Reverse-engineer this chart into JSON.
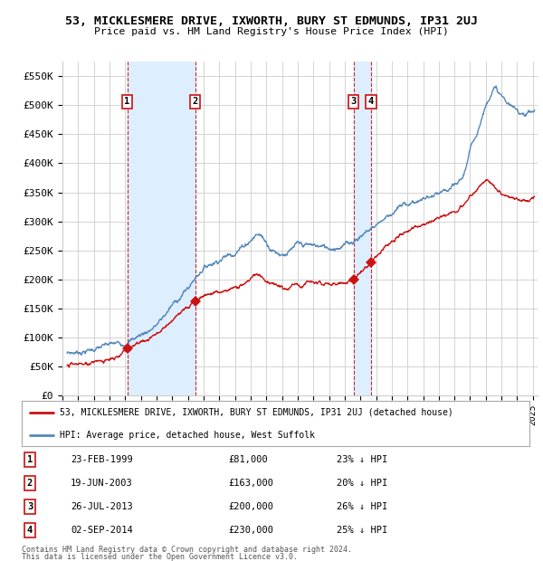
{
  "title": "53, MICKLESMERE DRIVE, IXWORTH, BURY ST EDMUNDS, IP31 2UJ",
  "subtitle": "Price paid vs. HM Land Registry's House Price Index (HPI)",
  "xlim_start": 1995.3,
  "xlim_end": 2025.3,
  "ylim": [
    0,
    575000
  ],
  "yticks": [
    0,
    50000,
    100000,
    150000,
    200000,
    250000,
    300000,
    350000,
    400000,
    450000,
    500000,
    550000
  ],
  "ytick_labels": [
    "£0",
    "£50K",
    "£100K",
    "£150K",
    "£200K",
    "£250K",
    "£300K",
    "£350K",
    "£400K",
    "£450K",
    "£500K",
    "£550K"
  ],
  "transactions": [
    {
      "num": 1,
      "date": "23-FEB-1999",
      "price": 81000,
      "year": 1999.13,
      "pct": "23%",
      "dir": "↓"
    },
    {
      "num": 2,
      "date": "19-JUN-2003",
      "price": 163000,
      "year": 2003.46,
      "pct": "20%",
      "dir": "↓"
    },
    {
      "num": 3,
      "date": "26-JUL-2013",
      "price": 200000,
      "year": 2013.57,
      "pct": "26%",
      "dir": "↓"
    },
    {
      "num": 4,
      "date": "02-SEP-2014",
      "price": 230000,
      "year": 2014.67,
      "pct": "25%",
      "dir": "↓"
    }
  ],
  "legend_line1": "53, MICKLESMERE DRIVE, IXWORTH, BURY ST EDMUNDS, IP31 2UJ (detached house)",
  "legend_line2": "HPI: Average price, detached house, West Suffolk",
  "footer1": "Contains HM Land Registry data © Crown copyright and database right 2024.",
  "footer2": "This data is licensed under the Open Government Licence v3.0.",
  "hpi_color": "#5588bb",
  "price_color": "#cc1111",
  "band_color": "#ddeeff",
  "grid_color": "#cccccc",
  "bg_color": "#ffffff",
  "hpi_keypoints": [
    [
      1995.3,
      73000
    ],
    [
      1996,
      75000
    ],
    [
      1997,
      80000
    ],
    [
      1998,
      87000
    ],
    [
      1999,
      92000
    ],
    [
      2000,
      105000
    ],
    [
      2001,
      122000
    ],
    [
      2002,
      155000
    ],
    [
      2003,
      185000
    ],
    [
      2004,
      220000
    ],
    [
      2005,
      235000
    ],
    [
      2006,
      248000
    ],
    [
      2007,
      268000
    ],
    [
      2007.5,
      278000
    ],
    [
      2008,
      265000
    ],
    [
      2008.5,
      250000
    ],
    [
      2009,
      245000
    ],
    [
      2009.5,
      248000
    ],
    [
      2010,
      258000
    ],
    [
      2011,
      258000
    ],
    [
      2012,
      255000
    ],
    [
      2013,
      260000
    ],
    [
      2014,
      275000
    ],
    [
      2015,
      295000
    ],
    [
      2016,
      315000
    ],
    [
      2017,
      330000
    ],
    [
      2018,
      338000
    ],
    [
      2019,
      345000
    ],
    [
      2020,
      358000
    ],
    [
      2020.5,
      375000
    ],
    [
      2021,
      420000
    ],
    [
      2021.5,
      460000
    ],
    [
      2022,
      500000
    ],
    [
      2022.5,
      530000
    ],
    [
      2023,
      515000
    ],
    [
      2023.5,
      500000
    ],
    [
      2024,
      490000
    ],
    [
      2024.5,
      488000
    ],
    [
      2025,
      490000
    ]
  ],
  "price_keypoints": [
    [
      1995.3,
      52000
    ],
    [
      1996,
      54000
    ],
    [
      1997,
      57000
    ],
    [
      1998,
      60000
    ],
    [
      1999.13,
      81000
    ],
    [
      2000,
      90000
    ],
    [
      2001,
      108000
    ],
    [
      2002,
      130000
    ],
    [
      2003.46,
      163000
    ],
    [
      2004,
      170000
    ],
    [
      2005,
      178000
    ],
    [
      2006,
      185000
    ],
    [
      2007,
      200000
    ],
    [
      2007.5,
      208000
    ],
    [
      2008,
      198000
    ],
    [
      2008.5,
      188000
    ],
    [
      2009,
      183000
    ],
    [
      2009.5,
      185000
    ],
    [
      2010,
      190000
    ],
    [
      2011,
      192000
    ],
    [
      2012,
      190000
    ],
    [
      2013,
      192000
    ],
    [
      2013.57,
      200000
    ],
    [
      2014,
      210000
    ],
    [
      2014.67,
      230000
    ],
    [
      2015,
      240000
    ],
    [
      2016,
      265000
    ],
    [
      2017,
      285000
    ],
    [
      2018,
      295000
    ],
    [
      2019,
      305000
    ],
    [
      2020,
      315000
    ],
    [
      2020.5,
      325000
    ],
    [
      2021,
      345000
    ],
    [
      2021.5,
      360000
    ],
    [
      2022,
      370000
    ],
    [
      2022.5,
      358000
    ],
    [
      2023,
      350000
    ],
    [
      2023.5,
      345000
    ],
    [
      2024,
      338000
    ],
    [
      2024.5,
      335000
    ]
  ]
}
